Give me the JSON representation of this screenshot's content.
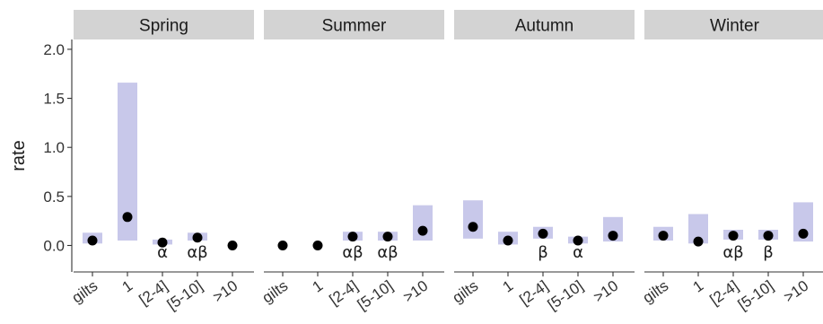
{
  "chart_data": {
    "type": "scatter",
    "facets": [
      "Spring",
      "Summer",
      "Autumn",
      "Winter"
    ],
    "categories": [
      "gilts",
      "1",
      "[2-4]",
      "[5-10]",
      ">10"
    ],
    "ylabel": "rate",
    "xlabel": "",
    "ylim": [
      -0.27,
      2.1
    ],
    "yticks": [
      "0.0",
      "0.5",
      "1.0",
      "1.5",
      "2.0"
    ],
    "ytick_values": [
      0,
      0.5,
      1.0,
      1.5,
      2.0
    ],
    "grid": false,
    "colors": {
      "interval": "#c8c8ea",
      "point": "#000000",
      "strip": "#d3d3d3"
    },
    "series": [
      {
        "facet": "Spring",
        "points": [
          0.05,
          0.29,
          0.03,
          0.08,
          0.0
        ],
        "lower": [
          0.02,
          0.05,
          0.01,
          0.05,
          0.0
        ],
        "upper": [
          0.13,
          1.66,
          0.06,
          0.13,
          0.0
        ],
        "labels": [
          "",
          "",
          "α",
          "αβ",
          ""
        ]
      },
      {
        "facet": "Summer",
        "points": [
          0.0,
          0.0,
          0.09,
          0.09,
          0.15
        ],
        "lower": [
          0.0,
          0.0,
          0.05,
          0.05,
          0.05
        ],
        "upper": [
          0.0,
          0.0,
          0.14,
          0.14,
          0.41
        ],
        "labels": [
          "",
          "",
          "αβ",
          "αβ",
          ""
        ]
      },
      {
        "facet": "Autumn",
        "points": [
          0.19,
          0.05,
          0.12,
          0.05,
          0.1
        ],
        "lower": [
          0.07,
          0.01,
          0.07,
          0.02,
          0.04
        ],
        "upper": [
          0.46,
          0.14,
          0.19,
          0.09,
          0.29
        ],
        "labels": [
          "",
          "",
          "β",
          "α",
          ""
        ]
      },
      {
        "facet": "Winter",
        "points": [
          0.1,
          0.04,
          0.1,
          0.1,
          0.12
        ],
        "lower": [
          0.05,
          0.02,
          0.06,
          0.06,
          0.04
        ],
        "upper": [
          0.19,
          0.32,
          0.16,
          0.16,
          0.44
        ],
        "labels": [
          "",
          "",
          "αβ",
          "β",
          ""
        ]
      }
    ]
  }
}
